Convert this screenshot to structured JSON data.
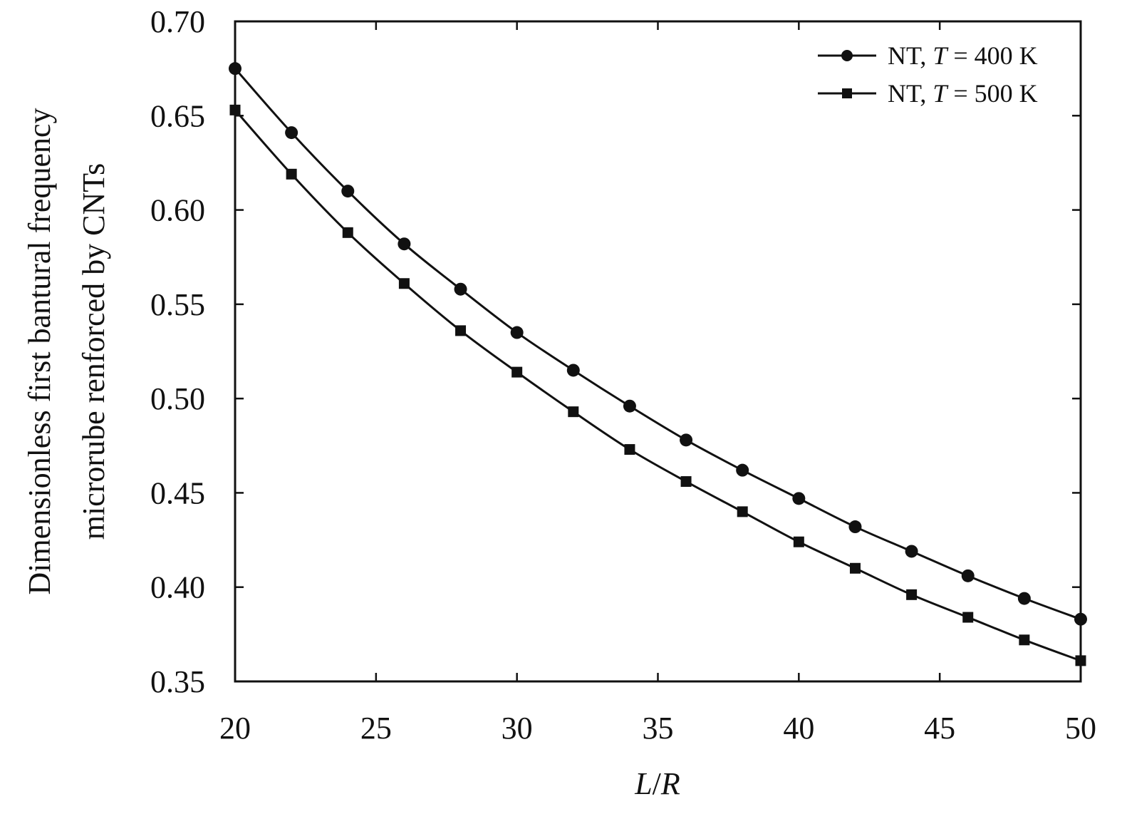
{
  "chart_data": {
    "type": "line",
    "xlabel": {
      "italic_1": "L",
      "sep": "/",
      "italic_2": "R"
    },
    "ylabel": [
      "Dimensionless first bantural frequency",
      "microrube renforced by CNTs"
    ],
    "xlim": [
      20,
      50
    ],
    "ylim": [
      0.35,
      0.7
    ],
    "xticks": [
      "20",
      "25",
      "30",
      "35",
      "40",
      "45",
      "50"
    ],
    "yticks": [
      "0.35",
      "0.40",
      "0.45",
      "0.50",
      "0.55",
      "0.60",
      "0.65",
      "0.70"
    ],
    "grid": false,
    "legend_position": "top-right",
    "x": [
      20,
      22,
      24,
      26,
      28,
      30,
      32,
      34,
      36,
      38,
      40,
      42,
      44,
      46,
      48,
      50
    ],
    "series": [
      {
        "legend": {
          "prefix": "NT, ",
          "symbol": "T",
          "suffix": " = 400 K"
        },
        "marker": "circle",
        "color": "#111111",
        "values": [
          0.675,
          0.641,
          0.61,
          0.582,
          0.558,
          0.535,
          0.515,
          0.496,
          0.478,
          0.462,
          0.447,
          0.432,
          0.419,
          0.406,
          0.394,
          0.383
        ]
      },
      {
        "legend": {
          "prefix": "NT, ",
          "symbol": "T",
          "suffix": " = 500 K"
        },
        "marker": "square",
        "color": "#111111",
        "values": [
          0.653,
          0.619,
          0.588,
          0.561,
          0.536,
          0.514,
          0.493,
          0.473,
          0.456,
          0.44,
          0.424,
          0.41,
          0.396,
          0.384,
          0.372,
          0.361
        ]
      }
    ]
  }
}
